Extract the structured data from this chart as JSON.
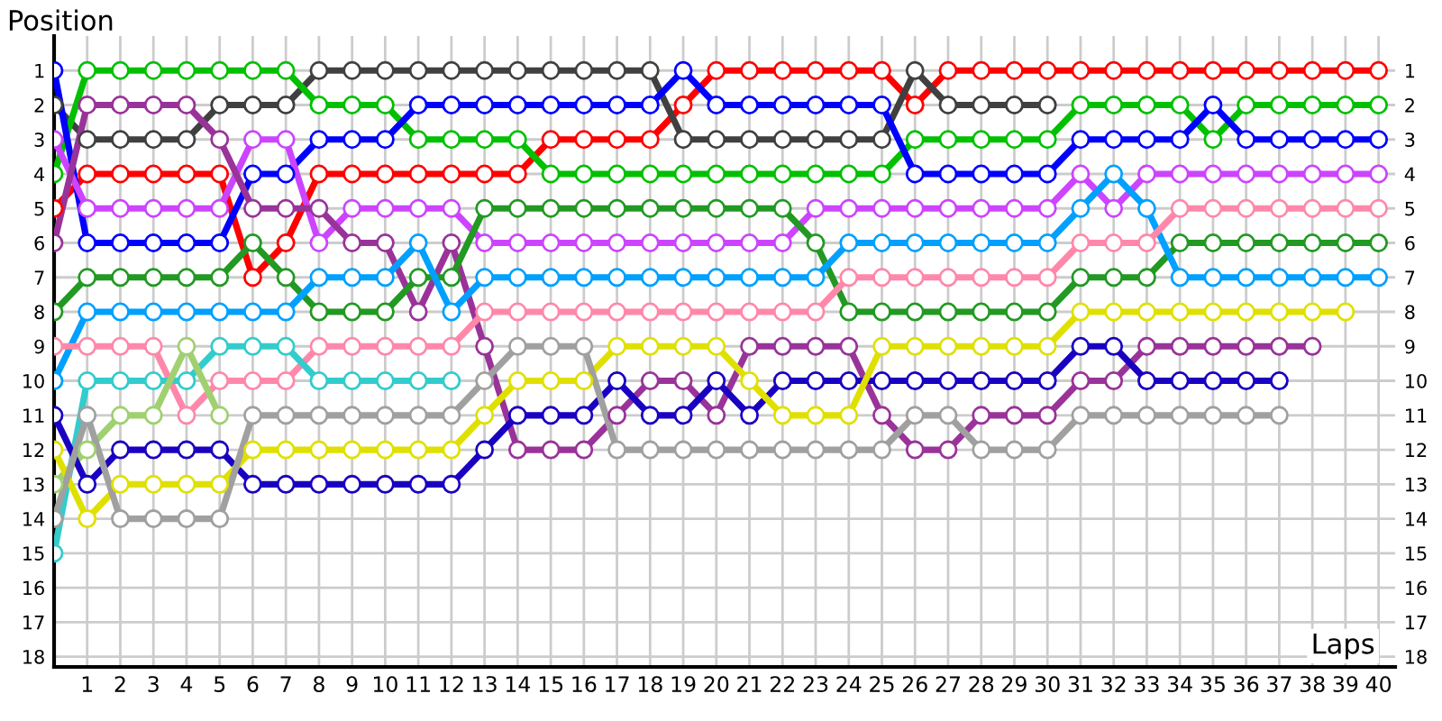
{
  "chart_data": {
    "type": "line",
    "xlabel": "Laps",
    "ylabel": "Position",
    "x": [
      0,
      1,
      2,
      3,
      4,
      5,
      6,
      7,
      8,
      9,
      10,
      11,
      12,
      13,
      14,
      15,
      16,
      17,
      18,
      19,
      20,
      21,
      22,
      23,
      24,
      25,
      26,
      27,
      28,
      29,
      30,
      31,
      32,
      33,
      34,
      35,
      36,
      37,
      38,
      39,
      40
    ],
    "series": [
      {
        "color": "#ff0000",
        "values": [
          5,
          4,
          4,
          4,
          4,
          4,
          7,
          6,
          4,
          4,
          4,
          4,
          4,
          4,
          4,
          3,
          3,
          3,
          3,
          2,
          1,
          1,
          1,
          1,
          1,
          1,
          2,
          1,
          1,
          1,
          1,
          1,
          1,
          1,
          1,
          1,
          1,
          1,
          1,
          1,
          1
        ]
      },
      {
        "color": "#404040",
        "values": [
          2,
          3,
          3,
          3,
          3,
          2,
          2,
          2,
          1,
          1,
          1,
          1,
          1,
          1,
          1,
          1,
          1,
          1,
          1,
          3,
          3,
          3,
          3,
          3,
          3,
          3,
          1,
          2,
          2,
          2,
          2,
          null,
          null,
          null,
          null,
          null,
          null,
          null,
          null,
          null,
          null
        ]
      },
      {
        "color": "#00c000",
        "values": [
          4,
          1,
          1,
          1,
          1,
          1,
          1,
          1,
          2,
          2,
          2,
          3,
          3,
          3,
          3,
          4,
          4,
          4,
          4,
          4,
          4,
          4,
          4,
          4,
          4,
          4,
          3,
          3,
          3,
          3,
          3,
          2,
          2,
          2,
          2,
          3,
          2,
          2,
          2,
          2,
          2
        ]
      },
      {
        "color": "#0000ff",
        "values": [
          1,
          6,
          6,
          6,
          6,
          6,
          4,
          4,
          3,
          3,
          3,
          2,
          2,
          2,
          2,
          2,
          2,
          2,
          2,
          1,
          2,
          2,
          2,
          2,
          2,
          2,
          4,
          4,
          4,
          4,
          4,
          3,
          3,
          3,
          3,
          2,
          3,
          3,
          3,
          3,
          3
        ]
      },
      {
        "color": "#cc44ff",
        "values": [
          3,
          5,
          5,
          5,
          5,
          5,
          3,
          3,
          6,
          5,
          5,
          5,
          5,
          6,
          6,
          6,
          6,
          6,
          6,
          6,
          6,
          6,
          6,
          5,
          5,
          5,
          5,
          5,
          5,
          5,
          5,
          4,
          5,
          4,
          4,
          4,
          4,
          4,
          4,
          4,
          4
        ]
      },
      {
        "color": "#993399",
        "values": [
          6,
          2,
          2,
          2,
          2,
          3,
          5,
          5,
          5,
          6,
          6,
          8,
          6,
          9,
          12,
          12,
          12,
          11,
          10,
          10,
          11,
          9,
          9,
          9,
          9,
          11,
          12,
          12,
          11,
          11,
          11,
          10,
          10,
          9,
          9,
          9,
          9,
          9,
          9,
          null,
          null
        ]
      },
      {
        "color": "#229922",
        "values": [
          8,
          7,
          7,
          7,
          7,
          7,
          6,
          7,
          8,
          8,
          8,
          7,
          7,
          5,
          5,
          5,
          5,
          5,
          5,
          5,
          5,
          5,
          5,
          6,
          8,
          8,
          8,
          8,
          8,
          8,
          8,
          7,
          7,
          7,
          6,
          6,
          6,
          6,
          6,
          6,
          6
        ]
      },
      {
        "color": "#00a0ff",
        "values": [
          10,
          8,
          8,
          8,
          8,
          8,
          8,
          8,
          7,
          7,
          7,
          6,
          8,
          7,
          7,
          7,
          7,
          7,
          7,
          7,
          7,
          7,
          7,
          7,
          6,
          6,
          6,
          6,
          6,
          6,
          6,
          5,
          4,
          5,
          7,
          7,
          7,
          7,
          7,
          7,
          7
        ]
      },
      {
        "color": "#ff88aa",
        "values": [
          9,
          9,
          9,
          9,
          11,
          10,
          10,
          10,
          9,
          9,
          9,
          9,
          9,
          8,
          8,
          8,
          8,
          8,
          8,
          8,
          8,
          8,
          8,
          8,
          7,
          7,
          7,
          7,
          7,
          7,
          7,
          6,
          6,
          6,
          5,
          5,
          5,
          5,
          5,
          5,
          5
        ]
      },
      {
        "color": "#33cccc",
        "values": [
          15,
          10,
          10,
          10,
          10,
          9,
          9,
          9,
          10,
          10,
          10,
          10,
          10,
          null,
          null,
          null,
          null,
          null,
          null,
          null,
          null,
          null,
          null,
          null,
          null,
          null,
          null,
          null,
          null,
          null,
          null,
          null,
          null,
          null,
          null,
          null,
          null,
          null,
          null,
          null,
          null
        ]
      },
      {
        "color": "#a0d070",
        "values": [
          13,
          12,
          11,
          11,
          9,
          11,
          null,
          null,
          null,
          null,
          null,
          null,
          null,
          null,
          null,
          null,
          null,
          null,
          null,
          null,
          null,
          null,
          null,
          null,
          null,
          null,
          null,
          null,
          null,
          null,
          null,
          null,
          null,
          null,
          null,
          null,
          null,
          null,
          null,
          null,
          null
        ]
      },
      {
        "color": "#1a00c0",
        "values": [
          11,
          13,
          12,
          12,
          12,
          12,
          13,
          13,
          13,
          13,
          13,
          13,
          13,
          12,
          11,
          11,
          11,
          10,
          11,
          11,
          10,
          11,
          10,
          10,
          10,
          10,
          10,
          10,
          10,
          10,
          10,
          9,
          9,
          10,
          10,
          10,
          10,
          10,
          null,
          null,
          null
        ]
      },
      {
        "color": "#e0e000",
        "values": [
          12,
          14,
          13,
          13,
          13,
          13,
          12,
          12,
          12,
          12,
          12,
          12,
          12,
          11,
          10,
          10,
          10,
          9,
          9,
          9,
          9,
          10,
          11,
          11,
          11,
          9,
          9,
          9,
          9,
          9,
          9,
          8,
          8,
          8,
          8,
          8,
          8,
          8,
          8,
          8,
          null
        ]
      },
      {
        "color": "#a0a0a0",
        "values": [
          14,
          11,
          14,
          14,
          14,
          14,
          11,
          11,
          11,
          11,
          11,
          11,
          11,
          10,
          9,
          9,
          9,
          12,
          12,
          12,
          12,
          12,
          12,
          12,
          12,
          12,
          11,
          11,
          12,
          12,
          12,
          11,
          11,
          11,
          11,
          11,
          11,
          11,
          null,
          null,
          null
        ]
      }
    ],
    "xlim": [
      0,
      40.5
    ],
    "xticks": [
      1,
      2,
      3,
      4,
      5,
      6,
      7,
      8,
      9,
      10,
      11,
      12,
      13,
      14,
      15,
      16,
      17,
      18,
      19,
      20,
      21,
      22,
      23,
      24,
      25,
      26,
      27,
      28,
      29,
      30,
      31,
      32,
      33,
      34,
      35,
      36,
      37,
      38,
      39,
      40
    ],
    "ylim": [
      18.3,
      0
    ],
    "yticks": [
      1,
      2,
      3,
      4,
      5,
      6,
      7,
      8,
      9,
      10,
      11,
      12,
      13,
      14,
      15,
      16,
      17,
      18
    ],
    "y2lim": [
      18.3,
      0
    ],
    "y2ticks": [
      1,
      2,
      3,
      4,
      5,
      6,
      7,
      8,
      9,
      10,
      11,
      12,
      13,
      14,
      15,
      16,
      17,
      18
    ],
    "grid": true,
    "marker": "circle",
    "line_style": "solid",
    "legend": false
  }
}
